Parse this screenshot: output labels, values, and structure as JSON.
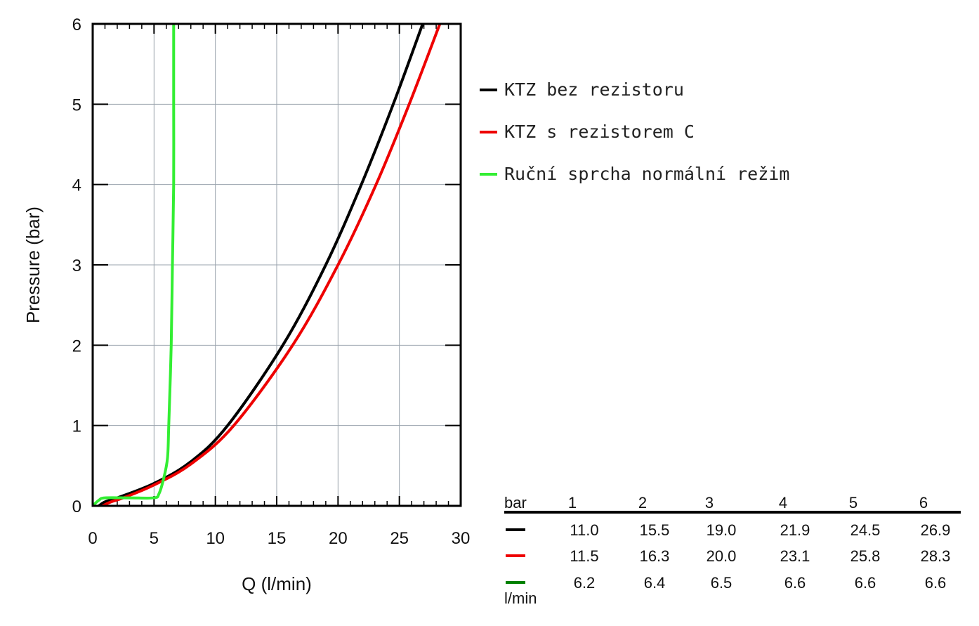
{
  "chart_data": {
    "type": "line",
    "xlabel": "Q (l/min)",
    "ylabel": "Pressure (bar)",
    "xlim": [
      0,
      30
    ],
    "ylim": [
      0,
      6
    ],
    "x_ticks": [
      "0",
      "5",
      "10",
      "15",
      "20",
      "25",
      "30"
    ],
    "y_ticks": [
      "0",
      "1",
      "2",
      "3",
      "4",
      "5",
      "6"
    ],
    "grid": true,
    "legend_position": "right",
    "series": [
      {
        "name": "KTZ bez rezistoru",
        "color": "#000000",
        "points": [
          [
            0.5,
            0
          ],
          [
            1,
            0.05
          ],
          [
            2,
            0.1
          ],
          [
            5,
            0.28
          ],
          [
            8,
            0.55
          ],
          [
            11,
            1
          ],
          [
            15.5,
            2
          ],
          [
            19,
            3
          ],
          [
            21.9,
            4
          ],
          [
            24.5,
            5
          ],
          [
            26.9,
            6
          ]
        ]
      },
      {
        "name": "KTZ s rezistorem C",
        "color": "#ee0000",
        "points": [
          [
            0.8,
            0
          ],
          [
            1.5,
            0.05
          ],
          [
            2.5,
            0.1
          ],
          [
            5,
            0.26
          ],
          [
            8,
            0.52
          ],
          [
            11.5,
            1
          ],
          [
            16.3,
            2
          ],
          [
            20,
            3
          ],
          [
            23.1,
            4
          ],
          [
            25.8,
            5
          ],
          [
            28.3,
            6
          ]
        ]
      },
      {
        "name": "Ruční sprcha normální režim",
        "color": "#33ee33",
        "points": [
          [
            0,
            0
          ],
          [
            0.5,
            0.07
          ],
          [
            1,
            0.1
          ],
          [
            3,
            0.1
          ],
          [
            5,
            0.1
          ],
          [
            5.4,
            0.15
          ],
          [
            5.8,
            0.35
          ],
          [
            6.1,
            0.6
          ],
          [
            6.2,
            1
          ],
          [
            6.4,
            2
          ],
          [
            6.5,
            3
          ],
          [
            6.6,
            4
          ],
          [
            6.6,
            5
          ],
          [
            6.6,
            6
          ]
        ]
      }
    ],
    "table": {
      "header_label": "bar",
      "unit_label": "l/min",
      "columns": [
        "1",
        "2",
        "3",
        "4",
        "5",
        "6"
      ],
      "rows": [
        {
          "color": "#000000",
          "values": [
            "11.0",
            "15.5",
            "19.0",
            "21.9",
            "24.5",
            "26.9"
          ]
        },
        {
          "color": "#ee0000",
          "values": [
            "11.5",
            "16.3",
            "20.0",
            "23.1",
            "25.8",
            "28.3"
          ]
        },
        {
          "color": "#008000",
          "values": [
            "6.2",
            "6.4",
            "6.5",
            "6.6",
            "6.6",
            "6.6"
          ]
        }
      ]
    }
  }
}
